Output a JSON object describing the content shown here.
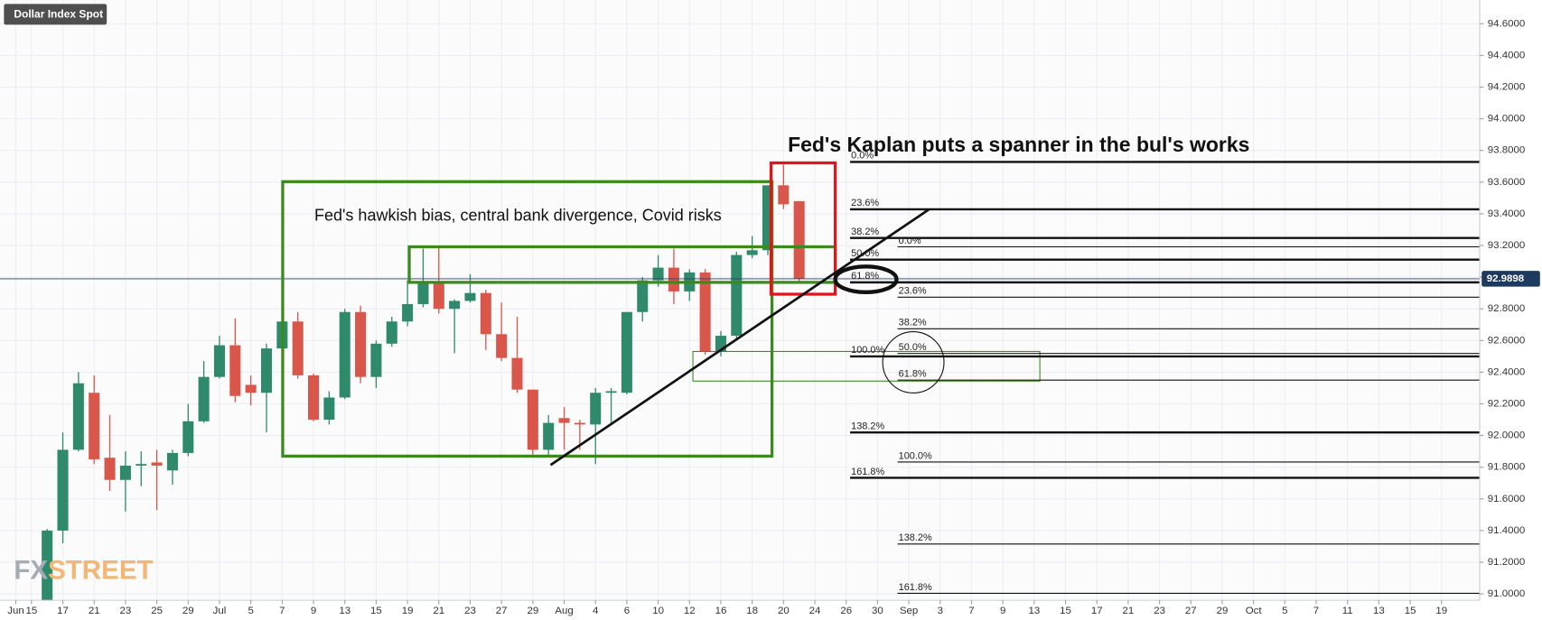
{
  "chart_data": {
    "type": "candlestick",
    "title": "Dollar Index Spot",
    "headline": "Fed's Kaplan puts a spanner in the bul's works",
    "box_note": "Fed's hawkish bias, central bank divergence, Covid risks",
    "watermark": [
      "FX",
      "STREET"
    ],
    "categories": [
      "Jun",
      "15",
      null,
      "17",
      null,
      "21",
      null,
      "23",
      null,
      "25",
      null,
      "29",
      null,
      "Jul",
      null,
      "5",
      null,
      "7",
      null,
      "9",
      null,
      "13",
      null,
      "15",
      null,
      "19",
      null,
      "21",
      null,
      "23",
      null,
      "27",
      null,
      "29",
      null,
      "Aug",
      null,
      "4",
      null,
      "6",
      null,
      "10",
      null,
      "12",
      null,
      "16",
      null,
      "18",
      null,
      "20",
      null,
      "24",
      null,
      "26",
      null,
      "30",
      null,
      "Sep",
      null,
      "3",
      null,
      "7",
      null,
      "9",
      null,
      "13",
      null,
      "15",
      null,
      "17",
      null,
      "21",
      null,
      "23",
      null,
      "27",
      null,
      "29",
      null,
      "Oct",
      null,
      "5",
      null,
      "7",
      null,
      "11",
      null,
      "13",
      null,
      "15",
      null,
      "19",
      null
    ],
    "open": [
      null,
      null,
      90.9,
      91.4,
      91.91,
      92.27,
      91.86,
      91.72,
      91.81,
      91.83,
      91.78,
      91.89,
      92.09,
      92.37,
      92.57,
      92.32,
      92.27,
      92.55,
      92.72,
      92.38,
      92.1,
      92.24,
      92.78,
      92.37,
      92.58,
      92.72,
      92.83,
      92.96,
      92.8,
      92.85,
      92.9,
      92.64,
      92.49,
      92.29,
      91.91,
      92.11,
      92.08,
      92.07,
      92.27,
      92.27,
      92.78,
      92.98,
      93.06,
      92.91,
      93.03,
      92.53,
      92.63,
      93.14,
      93.17,
      93.58,
      93.48,
      null,
      null,
      null,
      null,
      null,
      null,
      null,
      null,
      null,
      null,
      null,
      null,
      null,
      null,
      null,
      null,
      null,
      null,
      null,
      null,
      null,
      null,
      null,
      null,
      null,
      null,
      null,
      null,
      null,
      null,
      null,
      null,
      null,
      null,
      null,
      null,
      null,
      null,
      null,
      null,
      null,
      null
    ],
    "high": [
      null,
      null,
      91.41,
      92.02,
      92.4,
      92.38,
      92.13,
      91.9,
      91.9,
      91.91,
      91.91,
      92.2,
      92.47,
      92.63,
      92.74,
      92.38,
      92.58,
      92.74,
      92.78,
      92.39,
      92.28,
      92.8,
      92.82,
      92.6,
      92.75,
      92.98,
      93.18,
      93.19,
      92.86,
      93.02,
      92.92,
      92.84,
      92.75,
      92.29,
      92.13,
      92.18,
      92.1,
      92.3,
      92.3,
      92.78,
      93.0,
      93.14,
      93.18,
      93.05,
      93.05,
      92.66,
      93.16,
      93.26,
      93.58,
      93.71,
      93.48,
      null,
      null,
      null,
      null,
      null,
      null,
      null,
      null,
      null,
      null,
      null,
      null,
      null,
      null,
      null,
      null,
      null,
      null,
      null,
      null,
      null,
      null,
      null,
      null,
      null,
      null,
      null,
      null,
      null,
      null,
      null,
      null,
      null,
      null,
      null,
      null,
      null,
      null,
      null,
      null,
      null,
      null
    ],
    "low": [
      null,
      null,
      90.85,
      91.32,
      91.9,
      91.82,
      91.65,
      91.52,
      91.68,
      91.53,
      91.69,
      91.87,
      92.08,
      92.36,
      92.21,
      92.19,
      92.02,
      92.53,
      92.36,
      92.09,
      92.07,
      92.23,
      92.33,
      92.3,
      92.56,
      92.69,
      92.81,
      92.77,
      92.52,
      92.84,
      92.54,
      92.47,
      92.27,
      91.88,
      91.87,
      91.91,
      91.91,
      91.82,
      92.08,
      92.26,
      92.72,
      92.94,
      92.83,
      92.85,
      92.51,
      92.5,
      92.6,
      93.12,
      93.14,
      93.43,
      92.96,
      null,
      null,
      null,
      null,
      null,
      null,
      null,
      null,
      null,
      null,
      null,
      null,
      null,
      null,
      null,
      null,
      null,
      null,
      null,
      null,
      null,
      null,
      null,
      null,
      null,
      null,
      null,
      null,
      null,
      null,
      null,
      null,
      null,
      null,
      null,
      null,
      null,
      null,
      null,
      null,
      null,
      null
    ],
    "close": [
      null,
      null,
      91.4,
      91.91,
      92.33,
      91.85,
      91.72,
      91.81,
      91.82,
      91.81,
      91.89,
      92.09,
      92.37,
      92.57,
      92.25,
      92.27,
      92.55,
      92.72,
      92.38,
      92.1,
      92.24,
      92.78,
      92.37,
      92.58,
      92.72,
      92.83,
      92.96,
      92.8,
      92.85,
      92.9,
      92.64,
      92.49,
      92.29,
      91.91,
      92.08,
      92.08,
      92.07,
      92.27,
      92.28,
      92.78,
      92.98,
      93.06,
      92.91,
      93.03,
      92.53,
      92.63,
      93.14,
      93.17,
      93.58,
      93.46,
      92.99,
      null,
      null,
      null,
      null,
      null,
      null,
      null,
      null,
      null,
      null,
      null,
      null,
      null,
      null,
      null,
      null,
      null,
      null,
      null,
      null,
      null,
      null,
      null,
      null,
      null,
      null,
      null,
      null,
      null,
      null,
      null,
      null,
      null,
      null,
      null,
      null,
      null,
      null,
      null,
      null,
      null,
      null
    ],
    "up_color": "#2f8a6c",
    "down_color": "#d9574a",
    "last_price": 92.9898,
    "ylim": [
      90.96,
      94.75
    ],
    "yticks": [
      {
        "value": 91,
        "label": "91.0000"
      },
      {
        "value": 91.2,
        "label": "91.2000"
      },
      {
        "value": 91.4,
        "label": "91.4000"
      },
      {
        "value": 91.6,
        "label": "91.6000"
      },
      {
        "value": 91.8,
        "label": "91.8000"
      },
      {
        "value": 92,
        "label": "92.0000"
      },
      {
        "value": 92.2,
        "label": "92.2000"
      },
      {
        "value": 92.4,
        "label": "92.4000"
      },
      {
        "value": 92.6,
        "label": "92.6000"
      },
      {
        "value": 92.8,
        "label": "92.8000"
      },
      {
        "value": 93,
        "label": "93.0000"
      },
      {
        "value": 93.2,
        "label": "93.2000"
      },
      {
        "value": 93.4,
        "label": "93.4000"
      },
      {
        "value": 93.6,
        "label": "93.6000"
      },
      {
        "value": 93.8,
        "label": "93.8000"
      },
      {
        "value": 94,
        "label": "94.0000"
      },
      {
        "value": 94.2,
        "label": "94.2000"
      },
      {
        "value": 94.4,
        "label": "94.4000"
      },
      {
        "value": 94.6,
        "label": "94.6000"
      }
    ],
    "grid": true,
    "fib_a": [
      "0.0%",
      "23.6%",
      "38.2%",
      "50.0%",
      "61.8%",
      "100.0%",
      "138.2%",
      "161.8%"
    ],
    "fib_b": [
      "0.0%",
      "23.6%",
      "38.2%",
      "50.0%",
      "61.8%",
      "100.0%",
      "138.2%",
      "161.8%"
    ]
  }
}
